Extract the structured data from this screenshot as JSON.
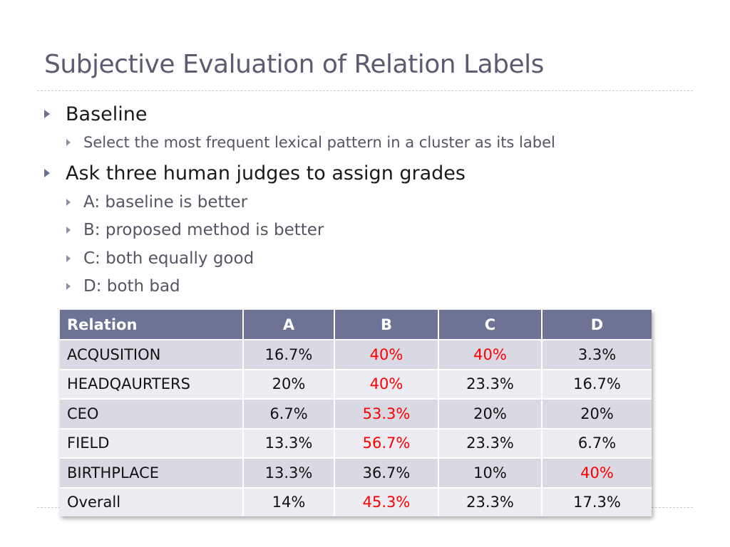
{
  "slide": {
    "title": "Subjective Evaluation of Relation Labels",
    "bullets": [
      {
        "text": "Baseline",
        "sub": [
          "Select the most frequent lexical pattern in a cluster as its label"
        ]
      },
      {
        "text": "Ask three human judges to assign grades",
        "sub": [
          "A: baseline is better",
          "B: proposed method is better",
          "C: both equally good",
          "D: both bad"
        ]
      }
    ]
  },
  "table": {
    "headers": [
      "Relation",
      "A",
      "B",
      "C",
      "D"
    ],
    "rows": [
      {
        "cells": [
          "ACQUSITION",
          "16.7%",
          "40%",
          "40%",
          "3.3%"
        ],
        "highlight": [
          2,
          3
        ]
      },
      {
        "cells": [
          "HEADQAURTERS",
          "20%",
          "40%",
          "23.3%",
          "16.7%"
        ],
        "highlight": [
          2
        ]
      },
      {
        "cells": [
          "CEO",
          "6.7%",
          "53.3%",
          "20%",
          "20%"
        ],
        "highlight": [
          2
        ]
      },
      {
        "cells": [
          "FIELD",
          "13.3%",
          "56.7%",
          "23.3%",
          "6.7%"
        ],
        "highlight": [
          2
        ]
      },
      {
        "cells": [
          "BIRTHPLACE",
          "13.3%",
          "36.7%",
          "10%",
          "40%"
        ],
        "highlight": [
          4
        ]
      },
      {
        "cells": [
          "Overall",
          "14%",
          "45.3%",
          "23.3%",
          "17.3%"
        ],
        "highlight": [
          2
        ]
      }
    ]
  },
  "colors": {
    "header_bg": "#6c7395",
    "highlight": "#ff0000",
    "row_dark": "#d9d9e3",
    "row_light": "#ececf2",
    "title": "#5b5b72"
  }
}
